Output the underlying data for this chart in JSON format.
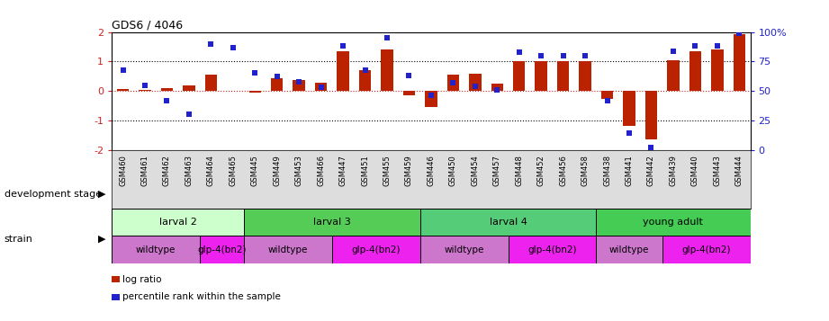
{
  "title": "GDS6 / 4046",
  "samples": [
    "GSM460",
    "GSM461",
    "GSM462",
    "GSM463",
    "GSM464",
    "GSM465",
    "GSM445",
    "GSM449",
    "GSM453",
    "GSM466",
    "GSM447",
    "GSM451",
    "GSM455",
    "GSM459",
    "GSM446",
    "GSM450",
    "GSM454",
    "GSM457",
    "GSM448",
    "GSM452",
    "GSM456",
    "GSM458",
    "GSM438",
    "GSM441",
    "GSM442",
    "GSM439",
    "GSM440",
    "GSM443",
    "GSM444"
  ],
  "log_ratios": [
    0.08,
    0.03,
    0.1,
    0.18,
    0.55,
    0.0,
    -0.07,
    0.42,
    0.38,
    0.28,
    1.35,
    0.72,
    1.42,
    -0.15,
    -0.55,
    0.55,
    0.58,
    0.25,
    1.0,
    1.0,
    1.02,
    1.0,
    -0.28,
    -1.2,
    -1.65,
    1.05,
    1.35,
    1.42,
    1.92
  ],
  "percentile_pcts": [
    68,
    55,
    42,
    30,
    90,
    87,
    65,
    62,
    58,
    53,
    88,
    68,
    95,
    63,
    46,
    57,
    54,
    51,
    83,
    80,
    80,
    80,
    42,
    14,
    2,
    84,
    88,
    88,
    99
  ],
  "bar_color": "#bb2200",
  "dot_color": "#2222cc",
  "ylim_left": [
    -2,
    2
  ],
  "ylim_right": [
    0,
    100
  ],
  "hline_0_color": "#cc2222",
  "hline_1_color": "black",
  "dev_stages": [
    {
      "label": "larval 2",
      "start": 0,
      "end": 6,
      "color": "#ccffcc"
    },
    {
      "label": "larval 3",
      "start": 6,
      "end": 14,
      "color": "#55cc55"
    },
    {
      "label": "larval 4",
      "start": 14,
      "end": 22,
      "color": "#55cc77"
    },
    {
      "label": "young adult",
      "start": 22,
      "end": 29,
      "color": "#44cc55"
    }
  ],
  "strains": [
    {
      "label": "wildtype",
      "start": 0,
      "end": 4,
      "color": "#cc77cc"
    },
    {
      "label": "glp-4(bn2)",
      "start": 4,
      "end": 6,
      "color": "#ee22ee"
    },
    {
      "label": "wildtype",
      "start": 6,
      "end": 10,
      "color": "#cc77cc"
    },
    {
      "label": "glp-4(bn2)",
      "start": 10,
      "end": 14,
      "color": "#ee22ee"
    },
    {
      "label": "wildtype",
      "start": 14,
      "end": 18,
      "color": "#cc77cc"
    },
    {
      "label": "glp-4(bn2)",
      "start": 18,
      "end": 22,
      "color": "#ee22ee"
    },
    {
      "label": "wildtype",
      "start": 22,
      "end": 25,
      "color": "#cc77cc"
    },
    {
      "label": "glp-4(bn2)",
      "start": 25,
      "end": 29,
      "color": "#ee22ee"
    }
  ],
  "legend_items": [
    {
      "label": "log ratio",
      "color": "#bb2200"
    },
    {
      "label": "percentile rank within the sample",
      "color": "#2222cc"
    }
  ],
  "dev_stage_label": "development stage",
  "strain_label": "strain",
  "arrow": "▶"
}
